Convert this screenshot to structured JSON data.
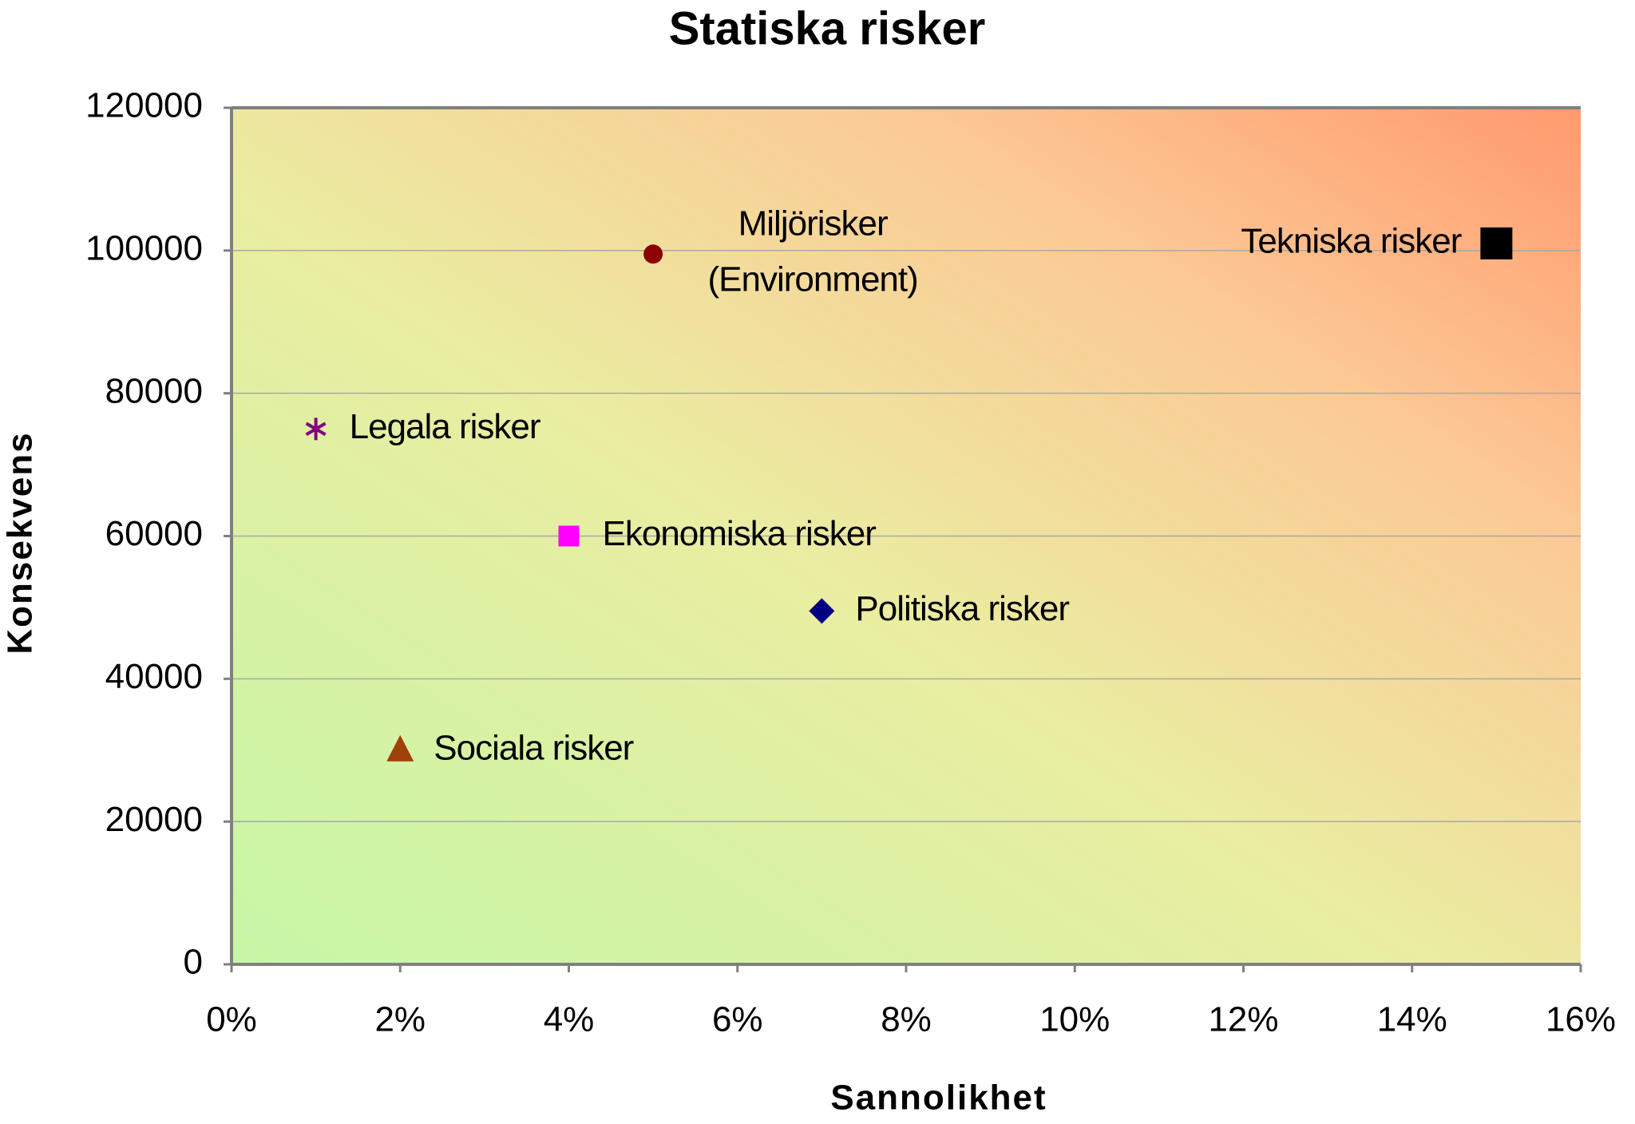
{
  "chart_data": {
    "type": "scatter",
    "title": "Statiska risker",
    "x_label": "Sannolikhet",
    "y_label": "Konsekvens",
    "xlim": [
      0,
      16
    ],
    "xticks": [
      {
        "value": 0,
        "label": "0%"
      },
      {
        "value": 2,
        "label": "2%"
      },
      {
        "value": 4,
        "label": "4%"
      },
      {
        "value": 6,
        "label": "6%"
      },
      {
        "value": 8,
        "label": "8%"
      },
      {
        "value": 10,
        "label": "10%"
      },
      {
        "value": 12,
        "label": "12%"
      },
      {
        "value": 14,
        "label": "14%"
      },
      {
        "value": 16,
        "label": "16%"
      }
    ],
    "ylim": [
      0,
      120000
    ],
    "yticks": [
      0,
      20000,
      40000,
      60000,
      80000,
      100000,
      120000
    ],
    "grid": true,
    "series": [
      {
        "name": "Miljörisker (Environment)",
        "color": "#8b0000",
        "marker": "circle",
        "x": [
          5
        ],
        "values": [
          99500
        ]
      },
      {
        "name": "Tekniska risker",
        "color": "#000000",
        "marker": "square",
        "x": [
          15
        ],
        "values": [
          101000
        ]
      },
      {
        "name": "Legala risker",
        "color": "#800080",
        "marker": "star",
        "x": [
          1
        ],
        "values": [
          75000
        ]
      },
      {
        "name": "Ekonomiska risker",
        "color": "#ff00ff",
        "marker": "square",
        "x": [
          4
        ],
        "values": [
          60000
        ]
      },
      {
        "name": "Politiska risker",
        "color": "#000080",
        "marker": "diamond",
        "x": [
          7
        ],
        "values": [
          49500
        ]
      },
      {
        "name": "Sociala risker",
        "color": "#a0400a",
        "marker": "triangle",
        "x": [
          2
        ],
        "values": [
          30000
        ]
      }
    ]
  }
}
